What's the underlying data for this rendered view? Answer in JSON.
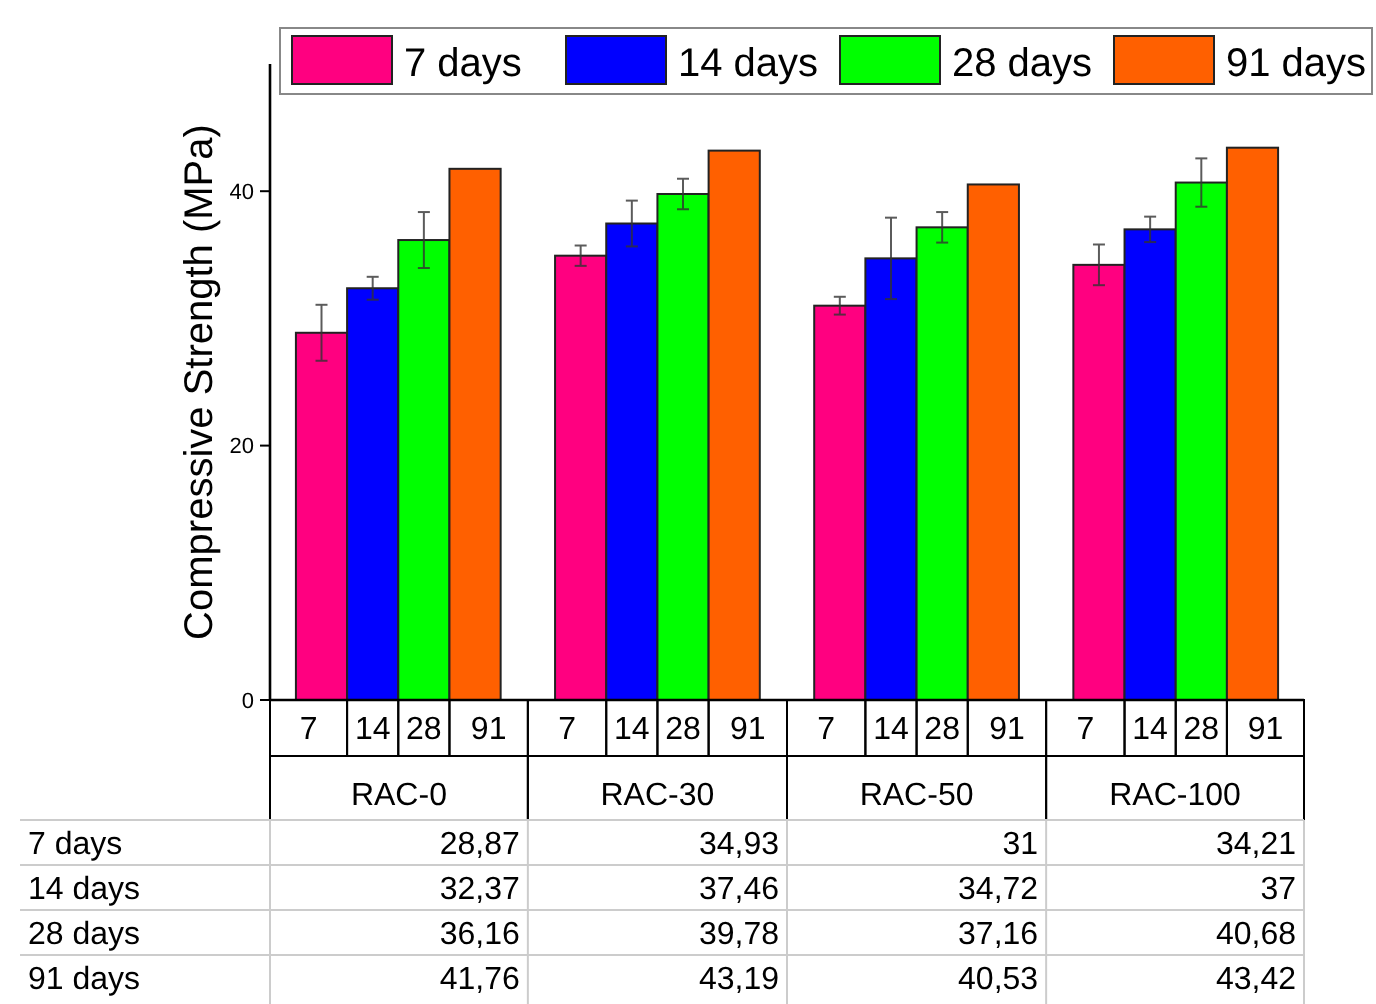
{
  "chart_data": {
    "type": "bar",
    "ylabel": "Compressive Strength (MPa)",
    "categories": [
      "RAC-0",
      "RAC-30",
      "RAC-50",
      "RAC-100"
    ],
    "series": [
      {
        "name": "7 days",
        "color": "#ff0080",
        "values": [
          28.87,
          34.93,
          31,
          34.21
        ],
        "value_labels": [
          "28,87",
          "34,93",
          "31",
          "34,21"
        ],
        "errors": [
          2.2,
          0.8,
          0.7,
          1.6
        ]
      },
      {
        "name": "14 days",
        "color": "#0000ff",
        "values": [
          32.37,
          37.46,
          34.72,
          37
        ],
        "value_labels": [
          "32,37",
          "37,46",
          "34,72",
          "37"
        ],
        "errors": [
          0.9,
          1.8,
          3.2,
          1.0
        ]
      },
      {
        "name": "28 days",
        "color": "#00ff00",
        "values": [
          36.16,
          39.78,
          37.16,
          40.68
        ],
        "value_labels": [
          "36,16",
          "39,78",
          "37,16",
          "40,68"
        ],
        "errors": [
          2.2,
          1.2,
          1.2,
          1.9
        ]
      },
      {
        "name": "91 days",
        "color": "#ff6000",
        "values": [
          41.76,
          43.19,
          40.53,
          43.42
        ],
        "value_labels": [
          "41,76",
          "43,19",
          "40,53",
          "43,42"
        ]
      }
    ],
    "annotations": [
      "7",
      "14",
      "28",
      "91"
    ],
    "ylim": [
      0,
      50
    ],
    "yticks": [
      0,
      20,
      40
    ],
    "grid": false,
    "legend": "top"
  }
}
